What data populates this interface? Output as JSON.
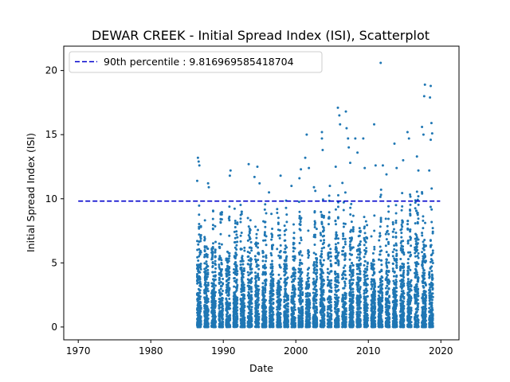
{
  "chart_data": {
    "type": "scatter",
    "title": "DEWAR CREEK - Initial Spread Index (ISI), Scatterplot",
    "xlabel": "Date",
    "ylabel": "Initial Spread Index (ISI)",
    "xlim": [
      1968,
      2022.5
    ],
    "ylim": [
      -1.0,
      21.9
    ],
    "xticks": [
      1970,
      1980,
      1990,
      2000,
      2010,
      2020
    ],
    "yticks": [
      0,
      5,
      10,
      15,
      20
    ],
    "legend_position": "top-left",
    "legend": [
      {
        "label": "90th percentile : 9.816969585418704",
        "color": "#0000cc",
        "style": "dashed"
      }
    ],
    "reference_line": {
      "y": 9.816969585418704,
      "x_from": 1970,
      "x_to": 2019.9,
      "color": "#0000cc"
    },
    "series": [
      {
        "color": "#1f77b4",
        "x_range": [
          1986.4,
          2018.9
        ],
        "points": [
          [
            1986.5,
            13.2
          ],
          [
            1986.6,
            12.9
          ],
          [
            1986.7,
            12.6
          ],
          [
            1986.4,
            11.4
          ],
          [
            1987.9,
            11.2
          ],
          [
            1988.0,
            10.9
          ],
          [
            1991.0,
            12.2
          ],
          [
            1990.9,
            11.8
          ],
          [
            1993.5,
            12.7
          ],
          [
            1994.3,
            11.7
          ],
          [
            1994.7,
            12.5
          ],
          [
            1995.0,
            11.2
          ],
          [
            1996.3,
            10.5
          ],
          [
            1997.9,
            11.8
          ],
          [
            1999.4,
            11.0
          ],
          [
            2000.7,
            12.3
          ],
          [
            2000.5,
            11.6
          ],
          [
            2001.5,
            15.0
          ],
          [
            2001.3,
            13.2
          ],
          [
            2001.8,
            12.4
          ],
          [
            2002.5,
            10.9
          ],
          [
            2003.6,
            15.2
          ],
          [
            2003.6,
            14.7
          ],
          [
            2003.7,
            13.8
          ],
          [
            2004.7,
            11.0
          ],
          [
            2005.5,
            12.5
          ],
          [
            2005.8,
            17.1
          ],
          [
            2006.0,
            16.5
          ],
          [
            2006.1,
            15.8
          ],
          [
            2006.9,
            16.8
          ],
          [
            2007.0,
            15.5
          ],
          [
            2007.2,
            14.7
          ],
          [
            2007.3,
            14.0
          ],
          [
            2007.5,
            12.8
          ],
          [
            2008.2,
            14.7
          ],
          [
            2008.5,
            13.6
          ],
          [
            2009.3,
            14.7
          ],
          [
            2009.5,
            12.4
          ],
          [
            2010.8,
            15.8
          ],
          [
            2011.0,
            12.6
          ],
          [
            2011.7,
            20.6
          ],
          [
            2012.0,
            12.6
          ],
          [
            2012.5,
            11.9
          ],
          [
            2013.6,
            14.3
          ],
          [
            2013.9,
            12.4
          ],
          [
            2014.8,
            13.0
          ],
          [
            2015.4,
            15.2
          ],
          [
            2015.6,
            14.7
          ],
          [
            2016.7,
            13.3
          ],
          [
            2016.9,
            12.2
          ],
          [
            2017.4,
            15.6
          ],
          [
            2017.6,
            15.0
          ],
          [
            2017.8,
            18.9
          ],
          [
            2017.7,
            18.0
          ],
          [
            2018.6,
            18.8
          ],
          [
            2018.5,
            17.9
          ],
          [
            2018.7,
            15.9
          ],
          [
            2018.8,
            15.1
          ],
          [
            2018.6,
            14.6
          ],
          [
            2018.4,
            12.2
          ]
        ]
      }
    ]
  }
}
